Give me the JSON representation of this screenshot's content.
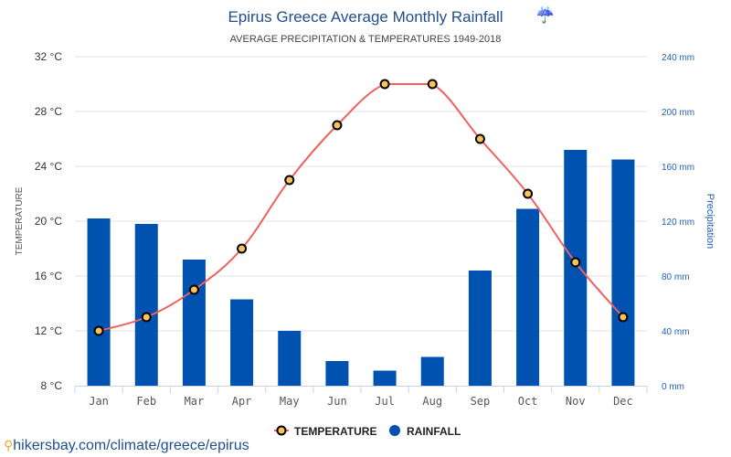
{
  "chart_data": {
    "type": "bar",
    "title": "Epirus Greece Average Monthly Rainfall",
    "title_icon": "umbrella-rain-icon",
    "subtitle": "AVERAGE PRECIPITATION & TEMPERATURES 1949-2018",
    "categories": [
      "Jan",
      "Feb",
      "Mar",
      "Apr",
      "May",
      "Jun",
      "Jul",
      "Aug",
      "Sep",
      "Oct",
      "Nov",
      "Dec"
    ],
    "series": [
      {
        "name": "TEMPERATURE",
        "type": "line",
        "axis": "left",
        "unit": "°C",
        "color": "#f06060",
        "marker_fill": "#f9c35a",
        "values": [
          12,
          13,
          15,
          18,
          23,
          27,
          30,
          30,
          26,
          22,
          17,
          13
        ]
      },
      {
        "name": "RAINFALL",
        "type": "bar",
        "axis": "right",
        "unit": "mm",
        "color": "#0052b0",
        "values": [
          122,
          118,
          92,
          63,
          40,
          18,
          11,
          21,
          84,
          129,
          172,
          165
        ]
      }
    ],
    "left_axis": {
      "label": "TEMPERATURE",
      "ylim": [
        8,
        32
      ],
      "ticks": [
        8,
        12,
        16,
        20,
        24,
        28,
        32
      ],
      "tick_labels": [
        "8 °C",
        "12 °C",
        "16 °C",
        "20 °C",
        "24 °C",
        "28 °C",
        "32 °C"
      ]
    },
    "right_axis": {
      "label": "Precipitation",
      "ylim": [
        0,
        240
      ],
      "ticks": [
        0,
        40,
        80,
        120,
        160,
        200,
        240
      ],
      "tick_labels": [
        "0 mm",
        "40 mm",
        "80 mm",
        "120 mm",
        "160 mm",
        "200 mm",
        "240 mm"
      ]
    },
    "grid": true,
    "legend": {
      "placement": "bottom-center",
      "items": [
        "TEMPERATURE",
        "RAINFALL"
      ]
    }
  },
  "source_link": "hikersbay.com/climate/greece/epirus"
}
